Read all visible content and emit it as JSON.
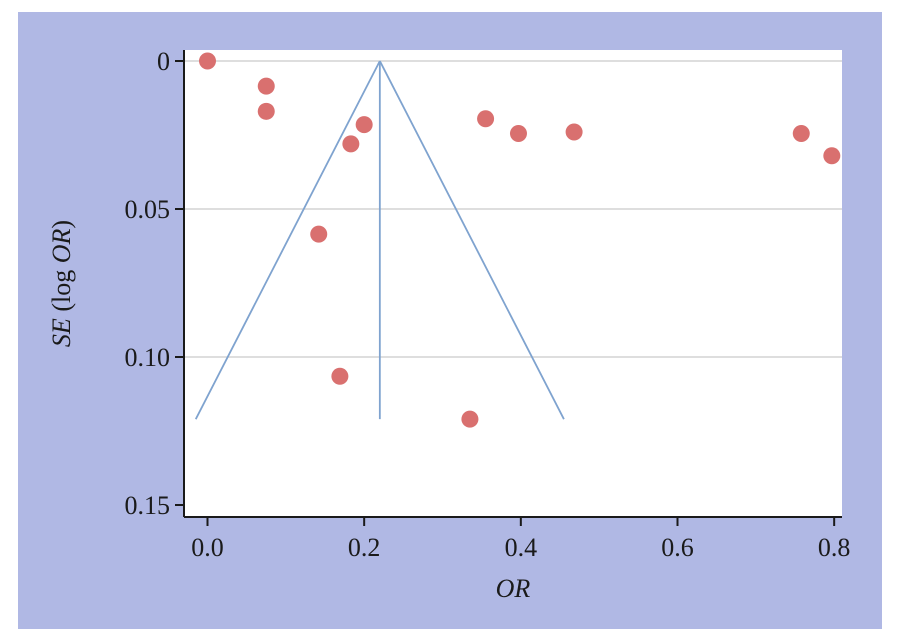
{
  "chart_data": {
    "type": "scatter",
    "title": "",
    "xlabel": "OR",
    "ylabel": {
      "pre_italic": "SE",
      "mid": " (log ",
      "italic": "OR",
      "post": ")"
    },
    "xlim": [
      -0.03,
      0.81
    ],
    "ylim": [
      0,
      0.15
    ],
    "y_inverted": true,
    "x_ticks": [
      0.0,
      0.2,
      0.4,
      0.6,
      0.8
    ],
    "x_tick_labels": [
      "0.0",
      "0.2",
      "0.4",
      "0.6",
      "0.8"
    ],
    "y_ticks": [
      0,
      0.05,
      0.1,
      0.15
    ],
    "y_tick_labels": [
      "0",
      "0.05",
      "0.10",
      "0.15"
    ],
    "grid": "horizontal",
    "points": [
      {
        "x": 0.0,
        "y": 0.0
      },
      {
        "x": 0.075,
        "y": 0.0085
      },
      {
        "x": 0.075,
        "y": 0.017
      },
      {
        "x": 0.2,
        "y": 0.0215
      },
      {
        "x": 0.183,
        "y": 0.028
      },
      {
        "x": 0.355,
        "y": 0.0195
      },
      {
        "x": 0.397,
        "y": 0.0245
      },
      {
        "x": 0.468,
        "y": 0.024
      },
      {
        "x": 0.758,
        "y": 0.0245
      },
      {
        "x": 0.797,
        "y": 0.032
      },
      {
        "x": 0.142,
        "y": 0.0585
      },
      {
        "x": 0.169,
        "y": 0.1065
      },
      {
        "x": 0.335,
        "y": 0.121
      }
    ],
    "funnel": {
      "center_x": 0.22,
      "apex_y": 0.0,
      "base_y": 0.121,
      "left_x": -0.015,
      "right_x": 0.455
    },
    "colors": {
      "background": "#b0b8e4",
      "plot_area": "#ffffff",
      "points": "#d9706f",
      "funnel": "#7fa3cf",
      "gridlines": "#d4d4d4",
      "axis": "#1a1a1a"
    }
  }
}
